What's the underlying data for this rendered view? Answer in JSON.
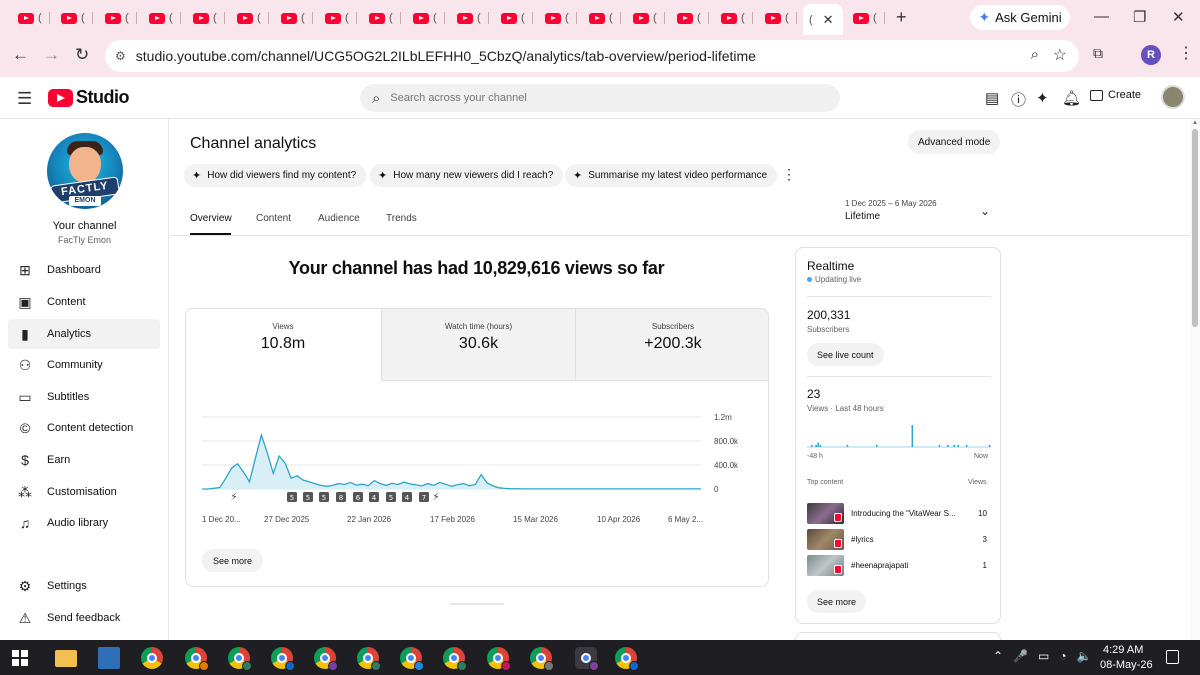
{
  "browser": {
    "tab_glyph": "(",
    "active_tab_glyph": "(",
    "close_glyph": "✕",
    "new_tab_glyph": "+",
    "gemini_label": "Ask Gemini",
    "url": "studio.youtube.com/channel/UCG5OG2L2ILbLEFHH0_5CbzQ/analytics/tab-overview/period-lifetime",
    "profile_initial": "R",
    "icons": [
      "back-icon",
      "forward-icon",
      "reload-icon",
      "site-info-icon",
      "zoom-icon",
      "bookmark-star-icon",
      "cast-icon",
      "chrome-menu-icon"
    ]
  },
  "studio": {
    "logo_text": "Studio",
    "search_placeholder": "Search across your channel",
    "create_label": "Create",
    "header_icons": [
      "captions-icon",
      "help-icon",
      "ai-sparkle-icon",
      "notifications-icon"
    ]
  },
  "sidebar": {
    "channel_banner_main": "FACTLY",
    "channel_banner_sub": "EMON",
    "your_channel": "Your channel",
    "channel_name": "FacTly Emon",
    "items": [
      {
        "label": "Dashboard",
        "icon": "dashboard-icon"
      },
      {
        "label": "Content",
        "icon": "content-icon"
      },
      {
        "label": "Analytics",
        "icon": "analytics-icon",
        "active": true
      },
      {
        "label": "Community",
        "icon": "community-icon"
      },
      {
        "label": "Subtitles",
        "icon": "subtitles-icon"
      },
      {
        "label": "Content detection",
        "icon": "copyright-icon"
      },
      {
        "label": "Earn",
        "icon": "dollar-icon"
      },
      {
        "label": "Customisation",
        "icon": "magic-wand-icon"
      },
      {
        "label": "Audio library",
        "icon": "audio-library-icon"
      }
    ],
    "footer": [
      {
        "label": "Settings",
        "icon": "gear-icon"
      },
      {
        "label": "Send feedback",
        "icon": "feedback-icon"
      }
    ]
  },
  "analytics": {
    "title": "Channel analytics",
    "advanced_mode": "Advanced mode",
    "ai_chips": [
      "How did viewers find my content?",
      "How many new viewers did I reach?",
      "Summarise my latest video performance"
    ],
    "date_range": "1 Dec 2025 – 6 May 2026",
    "period": "Lifetime",
    "tabs": [
      "Overview",
      "Content",
      "Audience",
      "Trends"
    ],
    "active_tab": "Overview",
    "headline": "Your channel has had 10,829,616 views so far",
    "metrics": [
      {
        "label": "Views",
        "value": "10.8m"
      },
      {
        "label": "Watch time (hours)",
        "value": "30.6k"
      },
      {
        "label": "Subscribers",
        "value": "+200.3k"
      }
    ],
    "see_more": "See more"
  },
  "chart_data": {
    "type": "area",
    "title": "",
    "xlabel": "",
    "ylabel": "",
    "y_tick_labels": [
      "1.2m",
      "800.0k",
      "400.0k",
      "0"
    ],
    "y_ticks": [
      1200000,
      800000,
      400000,
      0
    ],
    "ylim": [
      0,
      1200000
    ],
    "x_tick_labels": [
      "1 Dec 20...",
      "27 Dec 2025",
      "22 Jan 2026",
      "17 Feb 2026",
      "15 Mar 2026",
      "10 Apr 2026",
      "6 May 2..."
    ],
    "grid": true,
    "series": [
      {
        "values": [
          0,
          0,
          12000,
          25000,
          180000,
          350000,
          420000,
          280000,
          120000,
          520000,
          900000,
          600000,
          260000,
          550000,
          430000,
          180000,
          220000,
          150000,
          120000,
          90000,
          60000,
          45000,
          60000,
          90000,
          75000,
          110000,
          65000,
          80000,
          55000,
          140000,
          90000,
          60000,
          95000,
          75000,
          115000,
          85000,
          70000,
          50000,
          90000,
          60000,
          110000,
          80000,
          45000,
          70000,
          90000,
          55000,
          75000,
          240000,
          100000,
          50000,
          20000,
          10000,
          5000,
          3000,
          2000,
          2000,
          1500,
          1500,
          1200,
          1000,
          1000,
          1000,
          1000,
          1000,
          1000,
          1000,
          1000,
          1000,
          1000,
          1000,
          1000,
          1000,
          1000,
          1000,
          1000,
          1000,
          1000,
          1000,
          1000,
          1000,
          1000,
          1000,
          1000,
          1000,
          1000
        ]
      }
    ],
    "markers": [
      "⚡",
      "5",
      "5",
      "5",
      "8",
      "6",
      "4",
      "5",
      "4",
      "7",
      "⚡"
    ]
  },
  "realtime": {
    "title": "Realtime",
    "status": "Updating live",
    "subscribers_value": "200,331",
    "subscribers_label": "Subscribers",
    "see_live_count": "See live count",
    "views_value": "23",
    "views_label": "Views · Last 48 hours",
    "bars_48h": [
      0,
      0,
      1,
      0,
      1,
      2,
      1,
      0,
      0,
      0,
      0,
      0,
      0,
      0,
      0,
      0,
      0,
      0,
      0,
      1,
      0,
      0,
      0,
      0,
      0,
      0,
      0,
      0,
      0,
      0,
      0,
      0,
      0,
      1,
      0,
      0,
      0,
      0,
      0,
      0,
      0,
      0,
      0,
      0,
      0,
      0,
      0,
      0,
      0,
      0,
      10,
      0,
      0,
      0,
      0,
      0,
      0,
      0,
      0,
      0,
      0,
      0,
      0,
      1,
      0,
      0,
      0,
      1,
      0,
      0,
      1,
      0,
      1,
      0,
      0,
      0,
      1,
      0,
      0,
      0,
      0,
      0,
      0,
      0,
      0,
      0,
      0,
      1
    ],
    "axis_left": "-48 h",
    "axis_right": "Now",
    "top_content_label": "Top content",
    "views_col_label": "Views",
    "top_content": [
      {
        "title": "Introducing the “VitaWear S...",
        "views": "10"
      },
      {
        "title": "#lyrics",
        "views": "3"
      },
      {
        "title": "#heenaprajapati",
        "views": "1"
      }
    ],
    "see_more": "See more"
  },
  "taskbar": {
    "time": "4:29 AM",
    "date": "08-May-26",
    "tray_glyphs": [
      "⌃",
      "🎤",
      "▭",
      "◔",
      "🔈"
    ]
  },
  "colors": {
    "chart_line": "#2ba6c9",
    "chart_fill": "#d8eff6",
    "youtube_red": "#ff0033",
    "live_dot": "#3ea6ff",
    "tab_strip": "#f9e5ec"
  }
}
